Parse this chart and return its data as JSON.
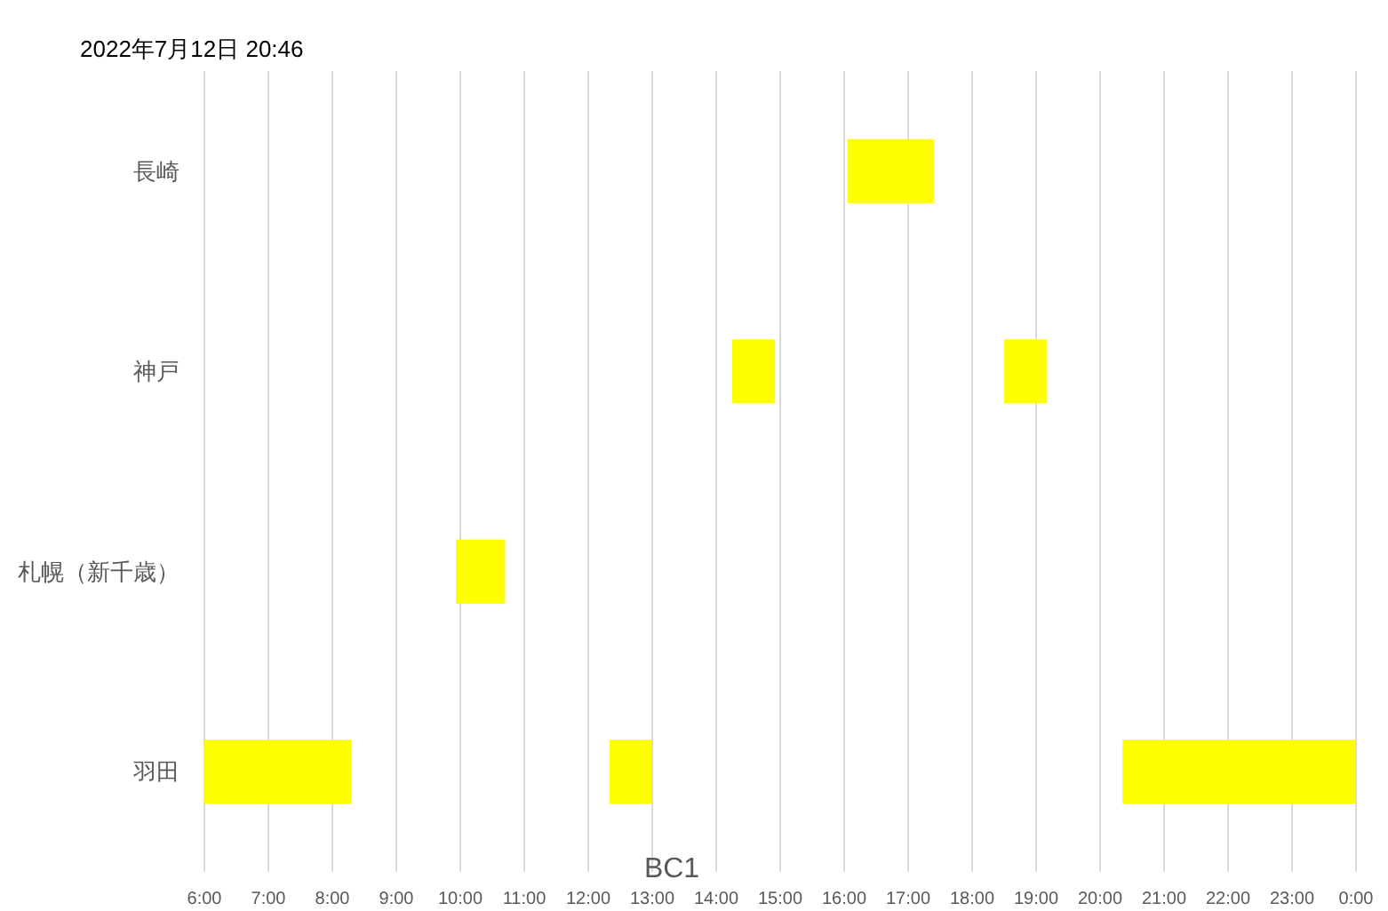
{
  "chart_data": {
    "type": "bar",
    "orientation": "horizontal",
    "title": "2022年7月12日 20:46",
    "xlabel": "BC1",
    "categories": [
      "長崎",
      "神戸",
      "札幌（新千歳）",
      "羽田"
    ],
    "series": [
      {
        "color": "#ffff00",
        "values": [
          1.35,
          0.67,
          0.77,
          2.3
        ],
        "base": [
          16.05,
          14.25,
          9.93,
          6
        ]
      },
      {
        "color": "#ffff00",
        "values": [
          null,
          0.67,
          null,
          0.67
        ],
        "base": [
          null,
          18.5,
          null,
          12.33
        ]
      },
      {
        "color": "#ffff00",
        "values": [
          null,
          null,
          null,
          3.65
        ],
        "base": [
          null,
          null,
          null,
          20.35
        ]
      }
    ],
    "xlim": [
      6,
      24
    ],
    "xticks": [
      {
        "value": 6,
        "label": "6:00"
      },
      {
        "value": 7,
        "label": "7:00"
      },
      {
        "value": 8,
        "label": "8:00"
      },
      {
        "value": 9,
        "label": "9:00"
      },
      {
        "value": 10,
        "label": "10:00"
      },
      {
        "value": 11,
        "label": "11:00"
      },
      {
        "value": 12,
        "label": "12:00"
      },
      {
        "value": 13,
        "label": "13:00"
      },
      {
        "value": 14,
        "label": "14:00"
      },
      {
        "value": 15,
        "label": "15:00"
      },
      {
        "value": 16,
        "label": "16:00"
      },
      {
        "value": 17,
        "label": "17:00"
      },
      {
        "value": 18,
        "label": "18:00"
      },
      {
        "value": 19,
        "label": "19:00"
      },
      {
        "value": 20,
        "label": "20:00"
      },
      {
        "value": 21,
        "label": "21:00"
      },
      {
        "value": 22,
        "label": "22:00"
      },
      {
        "value": 23,
        "label": "23:00"
      },
      {
        "value": 24,
        "label": "0:00"
      }
    ],
    "grid": "x"
  }
}
